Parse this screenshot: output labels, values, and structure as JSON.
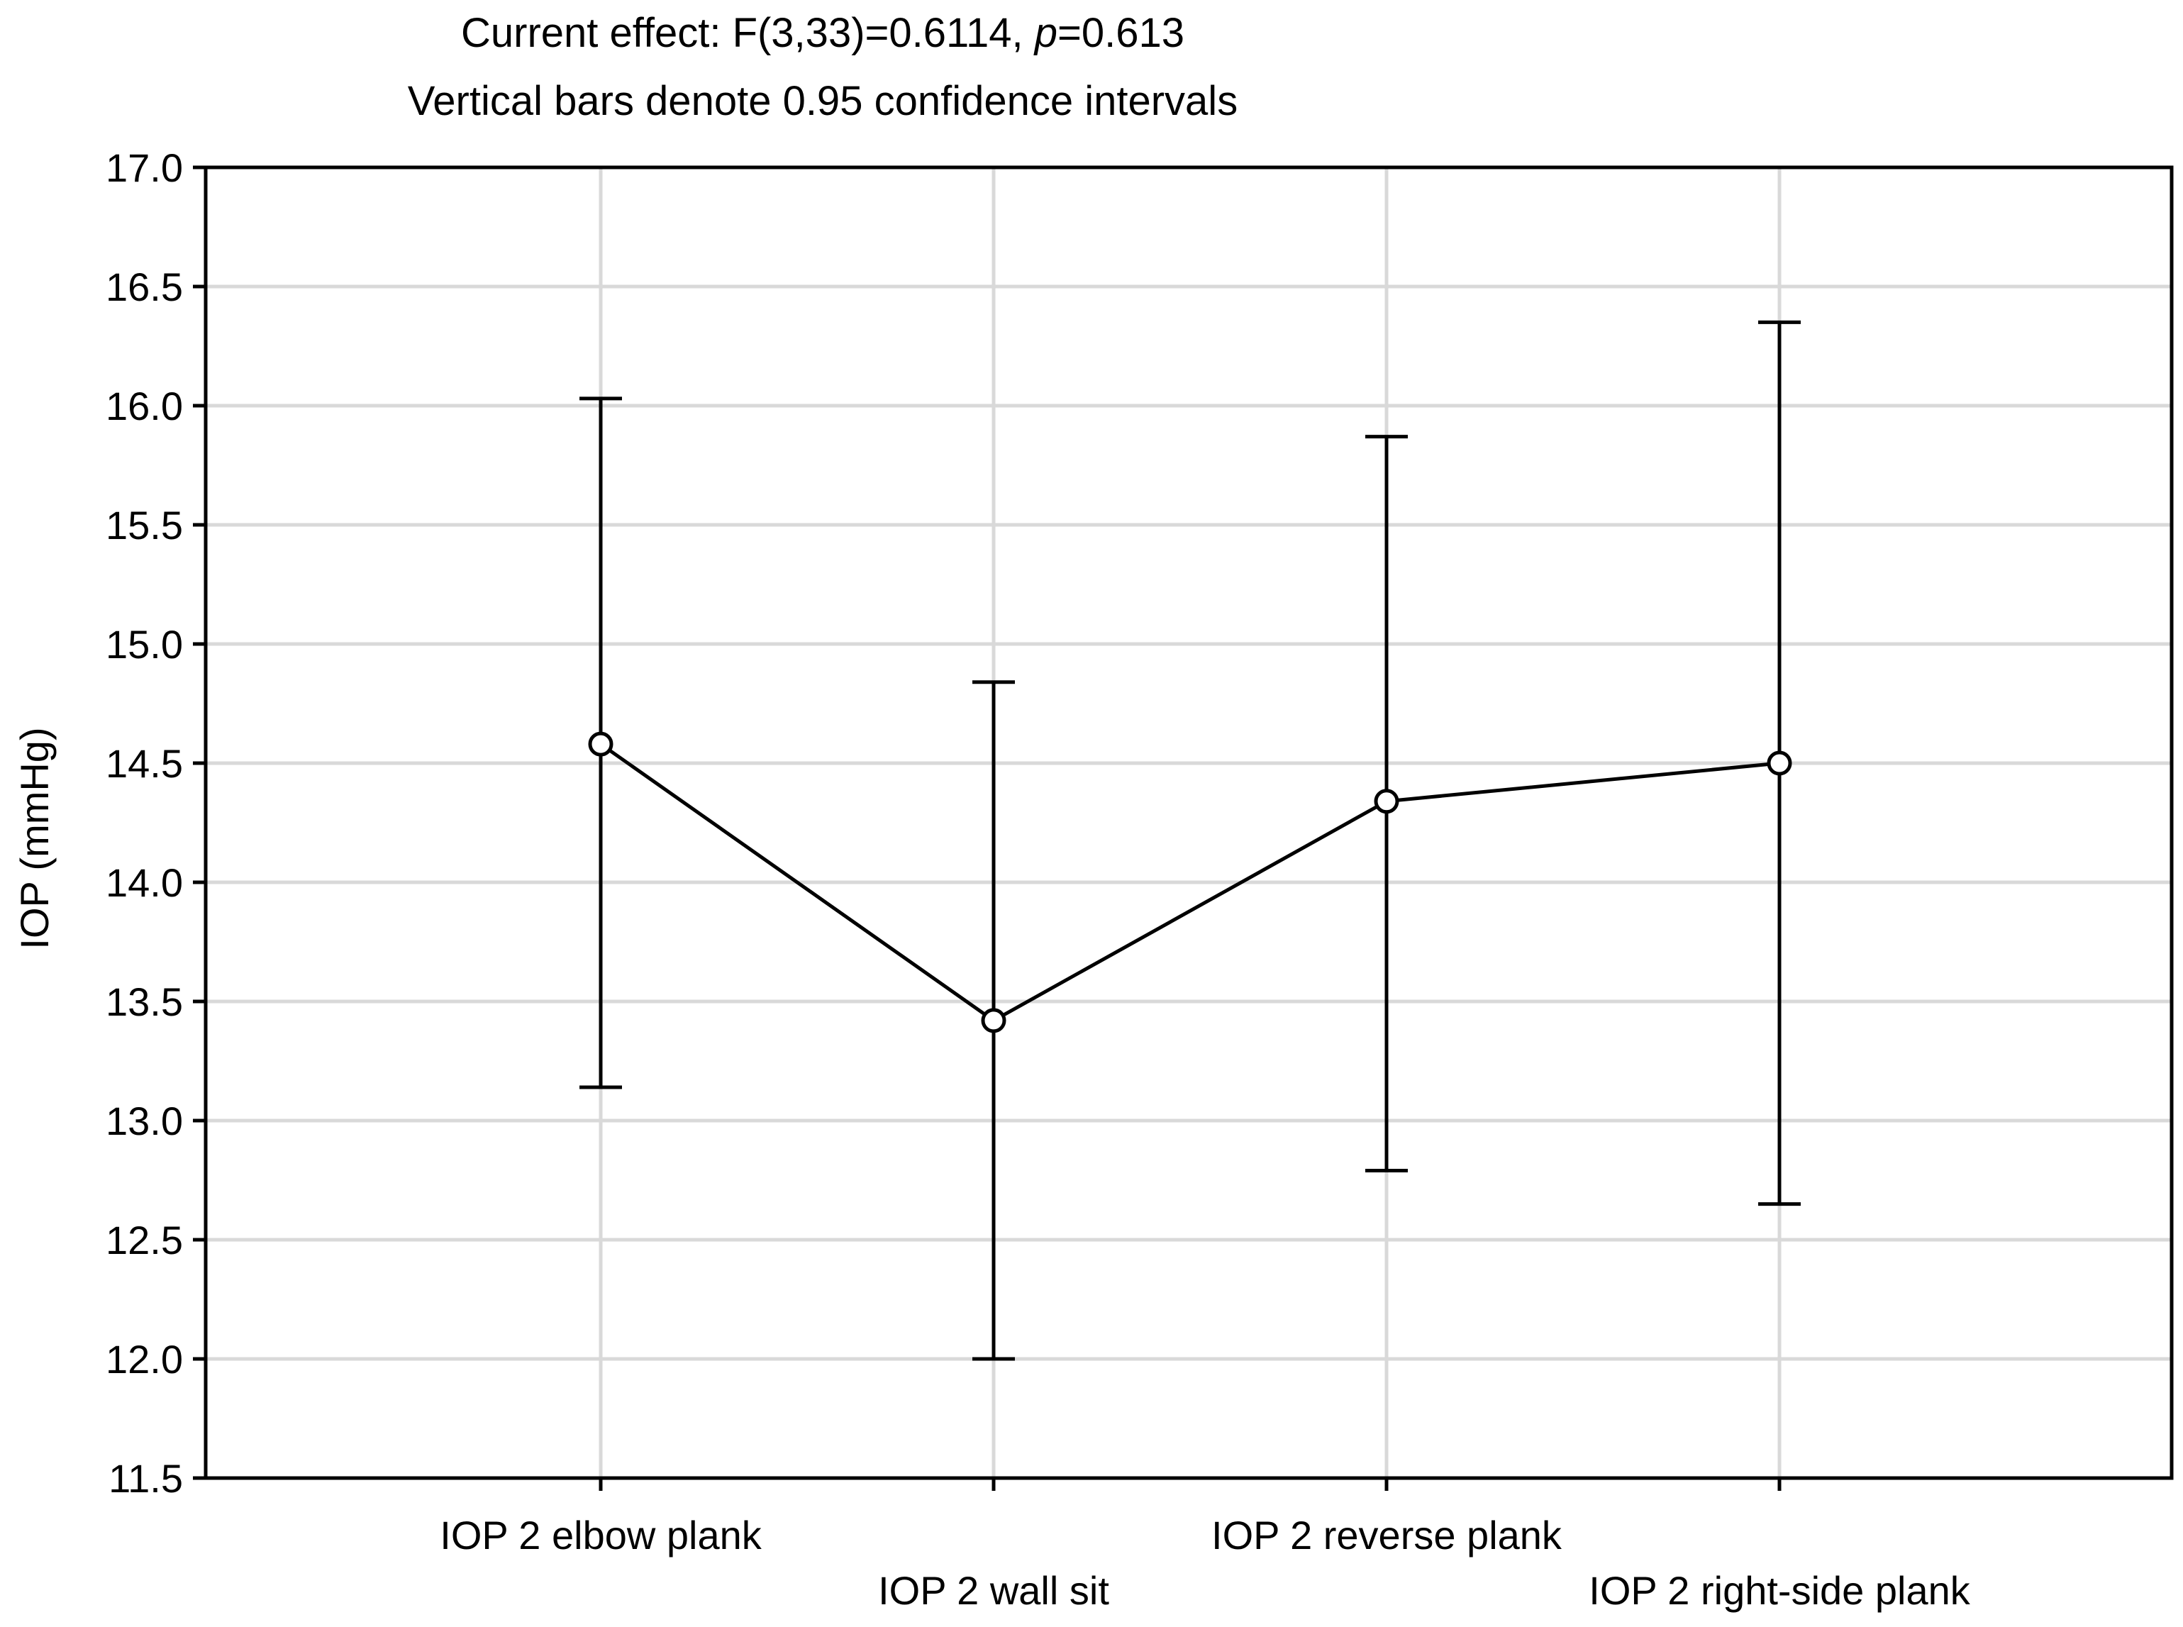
{
  "chart_data": {
    "type": "line",
    "title_line1_prefix": "Current effect: F(3,33)=0.6114, ",
    "title_line1_p": "p",
    "title_line1_suffix": "=0.613",
    "title_line2": "Vertical bars denote 0.95 confidence intervals",
    "xlabel": "",
    "ylabel": "IOP (mmHg)",
    "ylim": [
      11.5,
      17.0
    ],
    "yticks": [
      11.5,
      12.0,
      12.5,
      13.0,
      13.5,
      14.0,
      14.5,
      15.0,
      15.5,
      16.0,
      16.5,
      17.0
    ],
    "ytick_labels": [
      "11.5",
      "12.0",
      "12.5",
      "13.0",
      "13.5",
      "14.0",
      "14.5",
      "15.0",
      "15.5",
      "16.0",
      "16.5",
      "17.0"
    ],
    "grid": true,
    "categories": [
      "IOP 2 elbow plank",
      "IOP 2 wall sit",
      "IOP 2 reverse plank",
      "IOP 2 right-side plank"
    ],
    "series": [
      {
        "name": "IOP",
        "values": [
          14.58,
          13.42,
          14.34,
          14.5
        ],
        "ci_lower": [
          13.14,
          12.0,
          12.79,
          12.65
        ],
        "ci_upper": [
          16.03,
          14.84,
          15.87,
          16.35
        ]
      }
    ]
  },
  "colors": {
    "line": "#000000",
    "grid": "#d9d9d9",
    "background": "#ffffff"
  }
}
